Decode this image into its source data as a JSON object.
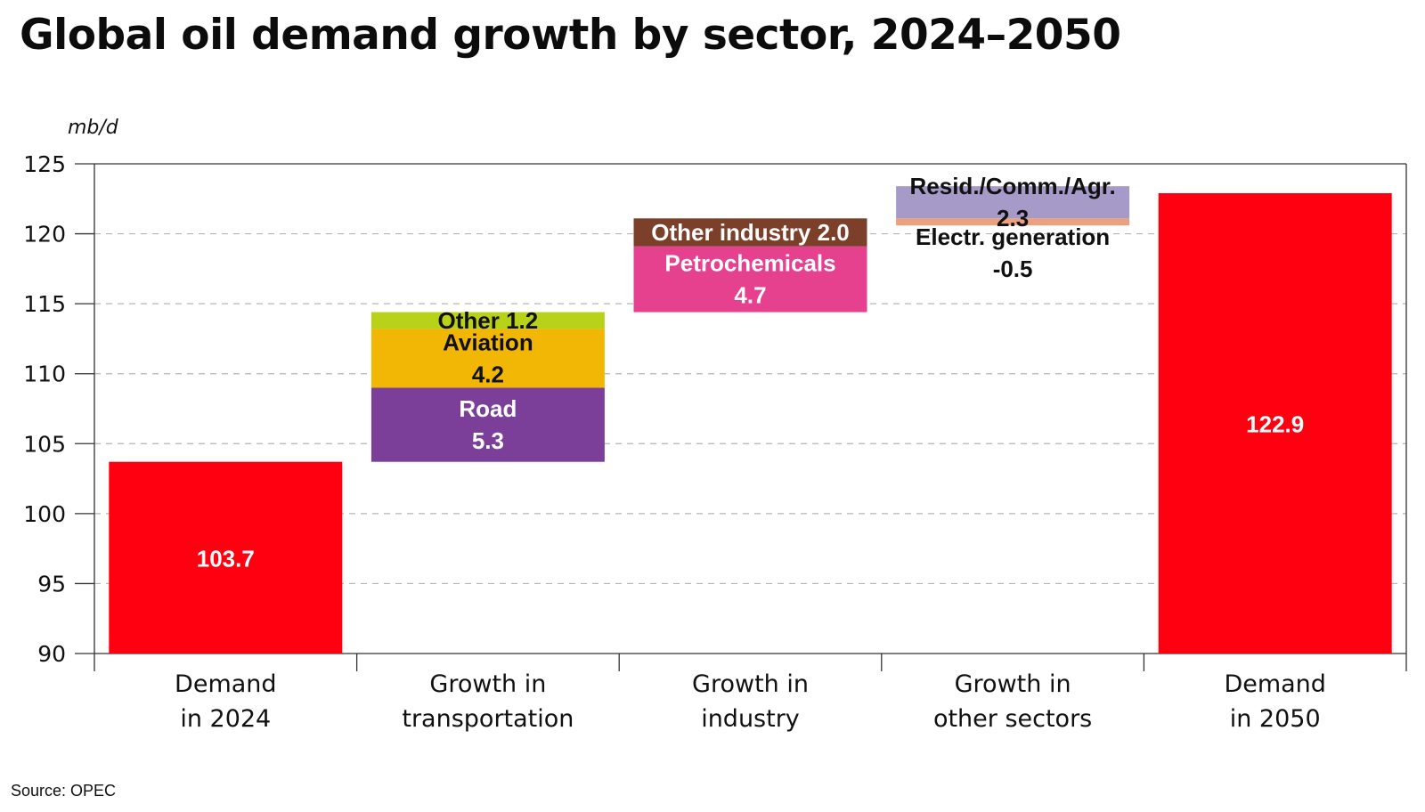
{
  "title": "Global oil demand growth by sector, 2024–2050",
  "source": "Source: OPEC",
  "chart_data": {
    "type": "bar",
    "subtype": "waterfall",
    "title": "Global oil demand growth by sector, 2024–2050",
    "ylabel": "mb/d",
    "ylim": [
      90,
      125
    ],
    "yticks": [
      90,
      95,
      100,
      105,
      110,
      115,
      120,
      125
    ],
    "grid": "horizontal-dashed",
    "categories": [
      [
        "Demand",
        "in 2024"
      ],
      [
        "Growth in",
        "transportation"
      ],
      [
        "Growth in",
        "industry"
      ],
      [
        "Growth in",
        "other sectors"
      ],
      [
        "Demand",
        "in 2050"
      ]
    ],
    "totals": [
      {
        "category_index": 0,
        "value": 103.7,
        "label": "103.7",
        "color": "#ff0010"
      },
      {
        "category_index": 4,
        "value": 122.9,
        "label": "122.9",
        "color": "#ff0010"
      }
    ],
    "segments": [
      {
        "category_index": 1,
        "name": "Road",
        "value": 5.3,
        "base": 103.7,
        "label_lines": [
          "Road",
          "5.3"
        ],
        "color": "#7b3f99",
        "label_color": "#ffffff"
      },
      {
        "category_index": 1,
        "name": "Aviation",
        "value": 4.2,
        "base": 109.0,
        "label_lines": [
          "Aviation",
          "4.2"
        ],
        "color": "#f2b705",
        "label_color": "#111111"
      },
      {
        "category_index": 1,
        "name": "Other",
        "value": 1.2,
        "base": 113.2,
        "label_lines": [
          "Other 1.2"
        ],
        "color": "#b8d21a",
        "label_color": "#111111"
      },
      {
        "category_index": 2,
        "name": "Petrochemicals",
        "value": 4.7,
        "base": 114.4,
        "label_lines": [
          "Petrochemicals",
          "4.7"
        ],
        "color": "#e6418f",
        "label_color": "#ffffff"
      },
      {
        "category_index": 2,
        "name": "Other industry",
        "value": 2.0,
        "base": 119.1,
        "label_lines": [
          "Other industry 2.0"
        ],
        "color": "#7b3f2a",
        "label_color": "#ffffff"
      },
      {
        "category_index": 3,
        "name": "Electr. generation",
        "value": -0.5,
        "base": 121.1,
        "label_lines": [
          "Electr. generation",
          "-0.5"
        ],
        "color": "#eca07e",
        "label_color": "#111111"
      },
      {
        "category_index": 3,
        "name": "Resid./Comm./Agr.",
        "value": 2.3,
        "base": 121.1,
        "label_lines": [
          "Resid./Comm./Agr.",
          "2.3"
        ],
        "color": "#a59ac8",
        "label_color": "#111111"
      }
    ]
  }
}
